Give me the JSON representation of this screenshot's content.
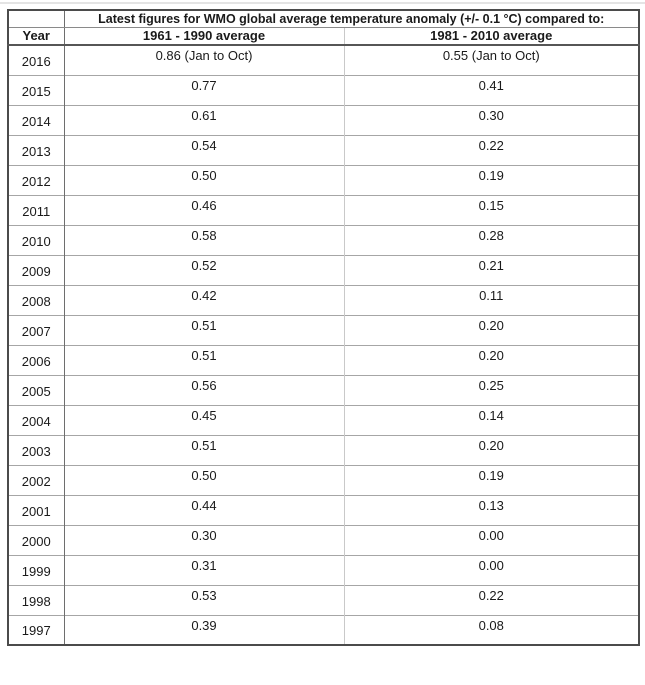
{
  "table": {
    "title": "Latest figures for WMO global average temperature anomaly (+/- 0.1 °C) compared to:",
    "year_header": "Year",
    "col1_header": "1961 - 1990 average",
    "col2_header": "1981 - 2010 average"
  },
  "colors": {
    "outer_border": "#4b4b4b",
    "row_border": "#a6a6a6",
    "light_divider": "#c9c9c9",
    "dark_divider": "#6e6e6e",
    "text": "#1a1a1a",
    "background": "#ffffff"
  },
  "chart_data": {
    "type": "table",
    "title": "Latest figures for WMO global average temperature anomaly (+/- 0.1 °C) compared to:",
    "columns": [
      "Year",
      "1961 - 1990 average",
      "1981 - 2010 average"
    ],
    "rows": [
      [
        "2016",
        "0.86 (Jan to Oct)",
        "0.55 (Jan to Oct)"
      ],
      [
        "2015",
        "0.77",
        "0.41"
      ],
      [
        "2014",
        "0.61",
        "0.30"
      ],
      [
        "2013",
        "0.54",
        "0.22"
      ],
      [
        "2012",
        "0.50",
        "0.19"
      ],
      [
        "2011",
        "0.46",
        "0.15"
      ],
      [
        "2010",
        "0.58",
        "0.28"
      ],
      [
        "2009",
        "0.52",
        "0.21"
      ],
      [
        "2008",
        "0.42",
        "0.11"
      ],
      [
        "2007",
        "0.51",
        "0.20"
      ],
      [
        "2006",
        "0.51",
        "0.20"
      ],
      [
        "2005",
        "0.56",
        "0.25"
      ],
      [
        "2004",
        "0.45",
        "0.14"
      ],
      [
        "2003",
        "0.51",
        "0.20"
      ],
      [
        "2002",
        "0.50",
        "0.19"
      ],
      [
        "2001",
        "0.44",
        "0.13"
      ],
      [
        "2000",
        "0.30",
        "0.00"
      ],
      [
        "1999",
        "0.31",
        "0.00"
      ],
      [
        "1998",
        "0.53",
        "0.22"
      ],
      [
        "1997",
        "0.39",
        "0.08"
      ]
    ]
  }
}
